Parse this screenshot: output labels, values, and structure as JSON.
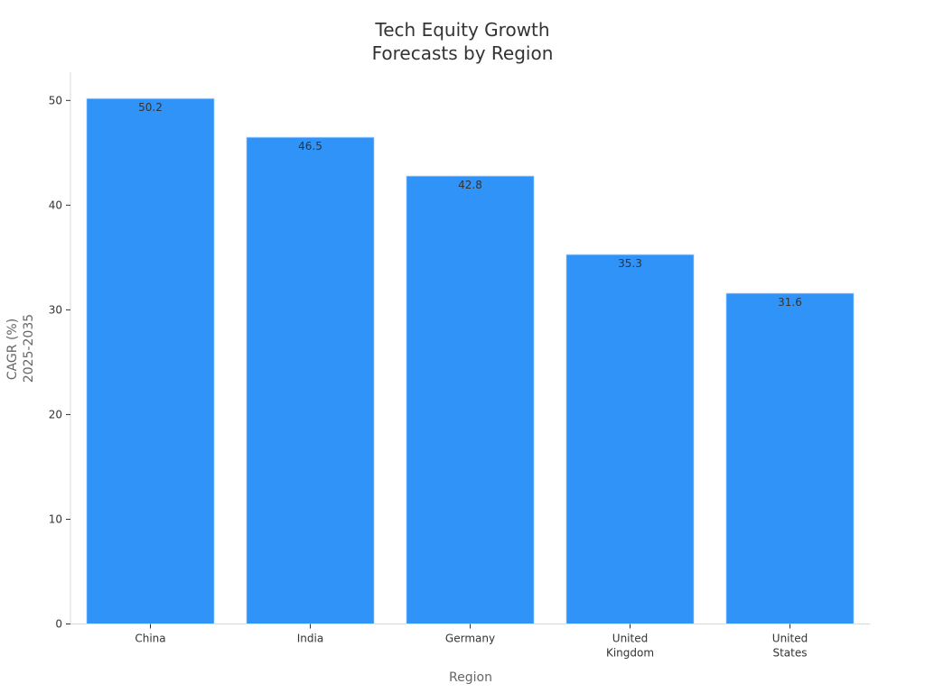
{
  "chart_data": {
    "type": "bar",
    "title": [
      "Tech Equity Growth",
      "Forecasts by Region"
    ],
    "xlabel": "Region",
    "ylabel": [
      "CAGR (%)",
      "2025-2035"
    ],
    "categories": [
      [
        "China"
      ],
      [
        "India"
      ],
      [
        "Germany"
      ],
      [
        "United",
        "Kingdom"
      ],
      [
        "United",
        "States"
      ]
    ],
    "values": [
      50.2,
      46.5,
      42.8,
      35.3,
      31.6
    ],
    "data_labels": [
      "50.2",
      "46.5",
      "42.8",
      "35.3",
      "31.6"
    ],
    "ylim": [
      0,
      52.7
    ],
    "yticks": [
      0,
      10,
      20,
      30,
      40,
      50
    ],
    "grid": false,
    "legend": "none",
    "bar_color": "#2F93F8",
    "bar_edge_color": "#D6E9FF"
  }
}
